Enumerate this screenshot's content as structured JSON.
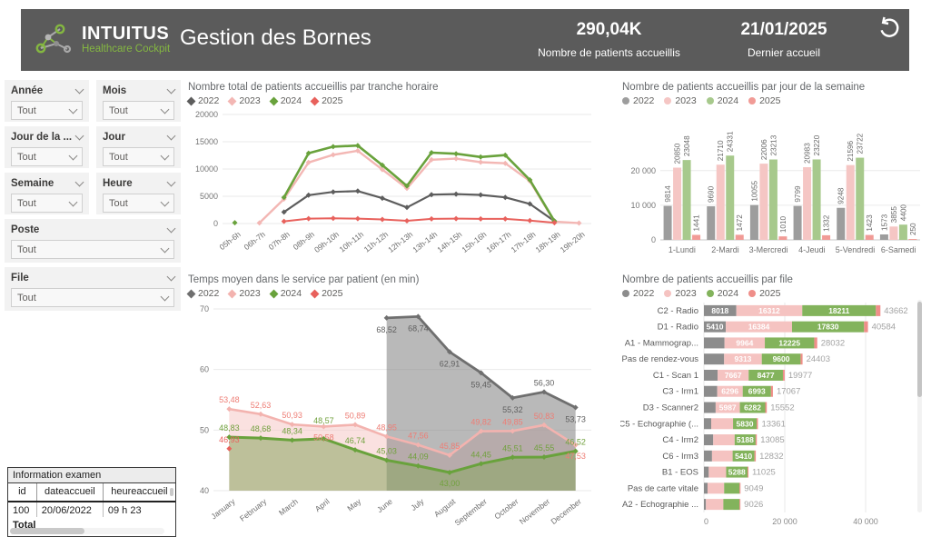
{
  "header": {
    "brand": {
      "name": "INTUITUS",
      "tagline": "Healthcare Cockpit"
    },
    "title": "Gestion des Bornes",
    "kpi_patients": {
      "value": "290,04K",
      "label": "Nombre de patients accueillis"
    },
    "kpi_last": {
      "value": "21/01/2025",
      "label": "Dernier accueil"
    }
  },
  "colors": {
    "header_bg": "#5b5b5b",
    "brand_green": "#84b741",
    "year_2022_line": "#5d5d5d",
    "year_2023_line": "#f3b7b4",
    "year_2024_line": "#69a23c",
    "year_2025_line": "#e8615c",
    "year_2022_bar": "#9d9d9d",
    "year_2023_bar": "#f5c6c4",
    "year_2024_bar": "#a7c98c",
    "year_2025_bar": "#f19b96"
  },
  "filters": [
    {
      "label": "Année",
      "value": "Tout",
      "size": "half"
    },
    {
      "label": "Mois",
      "value": "Tout",
      "size": "half"
    },
    {
      "label": "Jour de la ...",
      "value": "Tout",
      "size": "half"
    },
    {
      "label": "Jour",
      "value": "Tout",
      "size": "half"
    },
    {
      "label": "Semaine",
      "value": "Tout",
      "size": "half"
    },
    {
      "label": "Heure",
      "value": "Tout",
      "size": "half"
    },
    {
      "label": "Poste",
      "value": "Tout",
      "size": "full"
    },
    {
      "label": "File",
      "value": "Tout",
      "size": "full"
    }
  ],
  "info_table": {
    "title": "Information examen",
    "columns": [
      "id",
      "dateaccueil",
      "heureaccueil"
    ],
    "rows": [
      [
        "100",
        "20/06/2022",
        "09 h 23"
      ]
    ],
    "total_label": "Total"
  },
  "chart_data": [
    {
      "id": "tranche_horaire",
      "type": "line",
      "title": "Nombre total de patients accueillis par tranche horaire",
      "legend_marker": "diamond",
      "categories": [
        "05h-6h",
        "06h-7h",
        "07h-8h",
        "08h-9h",
        "09h-10h",
        "10h-11h",
        "11h-12h",
        "12h-13h",
        "13h-14h",
        "14h-15h",
        "15h-16h",
        "16h-17h",
        "17h-18h",
        "18h-19h",
        "19h-20h"
      ],
      "series": [
        {
          "name": "2022",
          "color": "#5d5d5d",
          "width": 2.2,
          "values": [
            null,
            null,
            2100,
            5200,
            5800,
            5950,
            4650,
            2950,
            5300,
            5400,
            5250,
            4800,
            3600,
            450,
            null
          ]
        },
        {
          "name": "2023",
          "color": "#f3b7b4",
          "width": 2.4,
          "values": [
            null,
            100,
            4500,
            11200,
            12600,
            13350,
            9900,
            6450,
            11700,
            11900,
            11250,
            11050,
            7800,
            350,
            80
          ]
        },
        {
          "name": "2024",
          "color": "#69a23c",
          "width": 2.6,
          "values": [
            150,
            null,
            4800,
            12900,
            14100,
            14300,
            10700,
            6900,
            13000,
            12800,
            12200,
            12550,
            8000,
            450,
            null
          ]
        },
        {
          "name": "2025",
          "color": "#e8615c",
          "width": 2.0,
          "values": [
            null,
            null,
            400,
            900,
            950,
            900,
            750,
            500,
            850,
            900,
            850,
            850,
            550,
            150,
            null
          ]
        }
      ],
      "ylim": [
        0,
        20000
      ],
      "yticks": [
        0,
        5000,
        10000,
        15000,
        20000
      ],
      "ytick_labels": [
        "0",
        "5000",
        "10000",
        "15000",
        "20000"
      ],
      "grid": true,
      "legend_position": "top-left"
    },
    {
      "id": "jour_semaine",
      "type": "bar",
      "title": "Nombre de patients accueillis par jour de la semaine",
      "legend_marker": "circle",
      "categories": [
        "1-Lundi",
        "2-Mardi",
        "3-Mercredi",
        "4-Jeudi",
        "5-Vendredi",
        "6-Samedi"
      ],
      "series": [
        {
          "name": "2022",
          "color": "#9d9d9d",
          "values": [
            9814,
            9690,
            10055,
            9799,
            9248,
            1573
          ]
        },
        {
          "name": "2023",
          "color": "#f5c6c4",
          "values": [
            20850,
            21710,
            22006,
            20983,
            21596,
            3855
          ]
        },
        {
          "name": "2024",
          "color": "#a7c98c",
          "values": [
            23048,
            24331,
            23213,
            23220,
            23722,
            4400
          ]
        },
        {
          "name": "2025",
          "color": "#f19b96",
          "values": [
            1441,
            1472,
            1010,
            1332,
            1423,
            250
          ]
        }
      ],
      "show_value_labels": true,
      "ylim": [
        0,
        32000
      ],
      "yticks": [
        0,
        10000,
        20000
      ],
      "ytick_labels": [
        "0",
        "10 000",
        "20 000"
      ],
      "grid": true,
      "legend_position": "top-left"
    },
    {
      "id": "temps_moyen",
      "type": "area",
      "title": "Temps moyen dans le service par patient (en min)",
      "legend_marker": "diamond",
      "categories": [
        "January",
        "February",
        "March",
        "April",
        "May",
        "June",
        "July",
        "August",
        "September",
        "October",
        "November",
        "December"
      ],
      "series": [
        {
          "name": "2022",
          "color": "#6f6f6f",
          "width": 2.8,
          "fill": "rgba(128,128,128,0.55)",
          "label_color": "#5f5f5f",
          "values": [
            null,
            null,
            null,
            null,
            null,
            68.52,
            68.74,
            62.91,
            59.45,
            55.32,
            56.3,
            53.73
          ],
          "labels": [
            "",
            "",
            "",
            "",
            "",
            "68,52",
            "68,74",
            "62,91",
            "59,45",
            "55,32",
            "56,30",
            "53,73"
          ],
          "label_dy": {
            "5": 16,
            "6": 16,
            "7": 16,
            "8": 16,
            "9": 16,
            "11": 16
          }
        },
        {
          "name": "2023",
          "color": "#f3b3af",
          "width": 2.6,
          "fill": "rgba(246,200,198,0.55)",
          "label_color": "#ee7d75",
          "values": [
            53.48,
            52.63,
            50.93,
            50.58,
            50.89,
            48.95,
            47.56,
            45.85,
            49.82,
            49.85,
            50.83,
            47.53
          ],
          "labels": [
            "53,48",
            "52,63",
            "50,93",
            "50,58",
            "50,89",
            "48,95",
            "47,56",
            "45,85",
            "49,82",
            "49,85",
            "50,83",
            "47,53"
          ],
          "label_dy": {
            "3": 15,
            "11": 15
          }
        },
        {
          "name": "2024",
          "color": "#69a23c",
          "width": 3.0,
          "fill": "rgba(139,165,96,0.55)",
          "label_color": "#71a13e",
          "values": [
            48.83,
            48.68,
            48.34,
            48.57,
            46.74,
            45.03,
            44.09,
            43.0,
            44.45,
            45.51,
            45.55,
            46.52
          ],
          "labels": [
            "48,83",
            "48,68",
            "48,34",
            "48,57",
            "46,74",
            "45,03",
            "44,09",
            "43,00",
            "44,45",
            "45,51",
            "45,55",
            "46,52"
          ],
          "label_dy": {
            "3": -17,
            "7": 15
          }
        },
        {
          "name": "2025",
          "color": "#e8615c",
          "width": 2.0,
          "fill": "none",
          "label_color": "#e8615c",
          "values": [
            46.93,
            null,
            null,
            null,
            null,
            null,
            null,
            null,
            null,
            null,
            null,
            null
          ],
          "labels": [
            "46,93",
            "",
            "",
            "",
            "",
            "",
            "",
            "",
            "",
            "",
            "",
            ""
          ],
          "label_dy": {}
        }
      ],
      "draw_order": [
        1,
        0,
        2,
        3
      ],
      "ylim": [
        40,
        70
      ],
      "yticks": [
        40,
        50,
        60,
        70
      ],
      "ytick_labels": [
        "40",
        "50",
        "60",
        "70"
      ],
      "grid": true,
      "legend_position": "top-left"
    },
    {
      "id": "par_file",
      "type": "stacked_bar_h",
      "title": "Nombre de patients accueillis par file",
      "legend_marker": "circle",
      "series_meta": [
        {
          "name": "2022",
          "color": "#8c8c8c"
        },
        {
          "name": "2023",
          "color": "#f5c3c1"
        },
        {
          "name": "2024",
          "color": "#83b35c"
        },
        {
          "name": "2025",
          "color": "#ef8e89"
        }
      ],
      "rows": [
        {
          "label": "C2 - Radio",
          "total": "43662",
          "segments": [
            {
              "value": 8018,
              "text": "8018"
            },
            {
              "value": 16312,
              "text": "16312"
            },
            {
              "value": 18211,
              "text": "18211"
            },
            {
              "value": 1121,
              "text": ""
            }
          ]
        },
        {
          "label": "D1 - Radio",
          "total": "40584",
          "segments": [
            {
              "value": 5410,
              "text": "5410"
            },
            {
              "value": 16384,
              "text": "16384"
            },
            {
              "value": 17830,
              "text": "17830"
            },
            {
              "value": 960,
              "text": ""
            }
          ]
        },
        {
          "label": "A1 - Mammograp...",
          "total": "28032",
          "segments": [
            {
              "value": 5100,
              "text": ""
            },
            {
              "value": 9964,
              "text": "9964"
            },
            {
              "value": 12225,
              "text": "12225"
            },
            {
              "value": 743,
              "text": ""
            }
          ]
        },
        {
          "label": "Pas de rendez-vous",
          "total": "24403",
          "segments": [
            {
              "value": 5000,
              "text": ""
            },
            {
              "value": 9313,
              "text": "9313"
            },
            {
              "value": 9600,
              "text": "9600"
            },
            {
              "value": 490,
              "text": ""
            }
          ]
        },
        {
          "label": "C1 - Scan 1",
          "total": "19977",
          "segments": [
            {
              "value": 3400,
              "text": ""
            },
            {
              "value": 7667,
              "text": "7667"
            },
            {
              "value": 8477,
              "text": "8477"
            },
            {
              "value": 433,
              "text": ""
            }
          ]
        },
        {
          "label": "C3 - Irm1",
          "total": "17067",
          "segments": [
            {
              "value": 3300,
              "text": ""
            },
            {
              "value": 6296,
              "text": "6296"
            },
            {
              "value": 6993,
              "text": "6993"
            },
            {
              "value": 478,
              "text": ""
            }
          ]
        },
        {
          "label": "D3 - Scanner2",
          "total": "15552",
          "segments": [
            {
              "value": 2900,
              "text": ""
            },
            {
              "value": 5987,
              "text": "5987"
            },
            {
              "value": 6282,
              "text": "6282"
            },
            {
              "value": 383,
              "text": ""
            }
          ]
        },
        {
          "label": "C5 - Echographie (...",
          "total": "13361",
          "segments": [
            {
              "value": 1800,
              "text": ""
            },
            {
              "value": 5400,
              "text": ""
            },
            {
              "value": 5830,
              "text": "5830"
            },
            {
              "value": 331,
              "text": ""
            }
          ]
        },
        {
          "label": "C4 - Irm2",
          "total": "13085",
          "segments": [
            {
              "value": 2300,
              "text": ""
            },
            {
              "value": 5300,
              "text": ""
            },
            {
              "value": 5188,
              "text": "5188"
            },
            {
              "value": 297,
              "text": ""
            }
          ]
        },
        {
          "label": "C6 - Irm3",
          "total": "12832",
          "segments": [
            {
              "value": 2000,
              "text": ""
            },
            {
              "value": 5100,
              "text": ""
            },
            {
              "value": 5410,
              "text": "5410"
            },
            {
              "value": 322,
              "text": ""
            }
          ]
        },
        {
          "label": "B1 - EOS",
          "total": "11025",
          "segments": [
            {
              "value": 1200,
              "text": ""
            },
            {
              "value": 4300,
              "text": ""
            },
            {
              "value": 5288,
              "text": "5288"
            },
            {
              "value": 237,
              "text": ""
            }
          ]
        },
        {
          "label": "Pas de carte vitale",
          "total": "9049",
          "segments": [
            {
              "value": 900,
              "text": ""
            },
            {
              "value": 4100,
              "text": ""
            },
            {
              "value": 3800,
              "text": ""
            },
            {
              "value": 249,
              "text": ""
            }
          ]
        },
        {
          "label": "A2 - Echographie ...",
          "total": "9026",
          "segments": [
            {
              "value": 500,
              "text": ""
            },
            {
              "value": 4300,
              "text": ""
            },
            {
              "value": 4000,
              "text": ""
            },
            {
              "value": 226,
              "text": ""
            }
          ]
        }
      ],
      "xticks": [
        0,
        20000,
        40000
      ],
      "xtick_labels": [
        "0",
        "20 000",
        "40 000"
      ],
      "grid": true,
      "legend_position": "top-left",
      "scrollbar": true
    }
  ]
}
